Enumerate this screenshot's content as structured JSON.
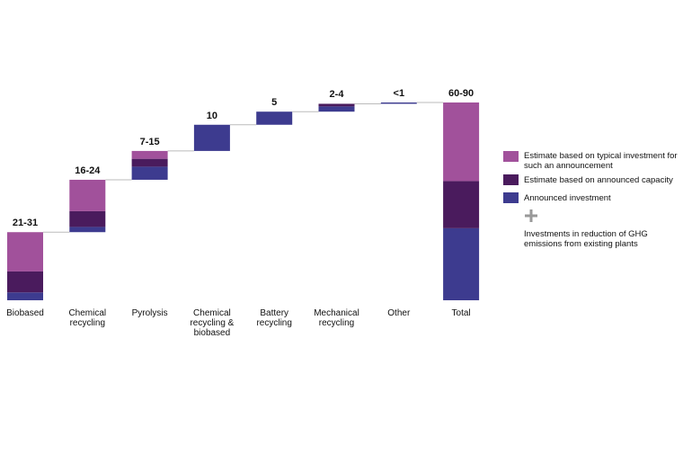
{
  "chart_data": {
    "type": "waterfall",
    "categories": [
      "Biobased",
      "Chemical recycling",
      "Pyrolysis",
      "Chemical recycling & biobased",
      "Battery recycling",
      "Mechanical recycling",
      "Other",
      "Total"
    ],
    "range_labels": [
      "21-31",
      "16-24",
      "7-15",
      "10",
      "5",
      "2-4",
      "<1",
      "60-90"
    ],
    "series": [
      {
        "name": "Estimate based on typical investment for such an announcement",
        "color": "#a1519b",
        "values": [
          15,
          12,
          3,
          null,
          null,
          null,
          null,
          30
        ]
      },
      {
        "name": "Estimate based on announced capacity",
        "color": "#4a1b5d",
        "values": [
          8,
          6,
          3,
          null,
          null,
          1,
          null,
          18
        ]
      },
      {
        "name": "Announced investment",
        "color": "#3d3b8f",
        "values": [
          3,
          2,
          5,
          10,
          5,
          2,
          0.5,
          27.5
        ]
      }
    ],
    "annotation": "Investments in reduction of GHG emissions from existing plants"
  }
}
